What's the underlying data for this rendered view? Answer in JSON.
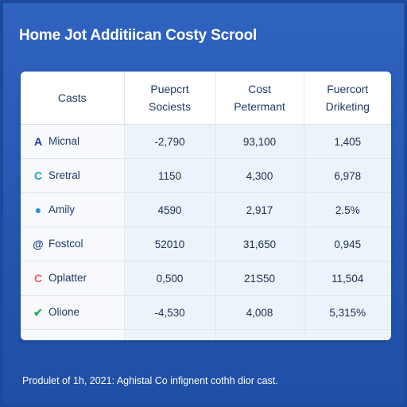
{
  "header": {
    "title": "Home Jot Additiican Costy Scrool"
  },
  "table": {
    "columns": [
      "Casts",
      "Puepcrt\nSociests",
      "Cost\nPetermant",
      "Fuercort\nDriketing"
    ],
    "rows": [
      {
        "icon": "letter-a-icon",
        "glyph": "A",
        "color": "#1d3f8f",
        "label": "Micnal",
        "values": [
          "-2,790",
          "93,100",
          "1,405"
        ]
      },
      {
        "icon": "letter-c-icon",
        "glyph": "C",
        "color": "#1aa3c2",
        "label": "Sretral",
        "values": [
          "1150",
          "4,300",
          "6,978"
        ]
      },
      {
        "icon": "drop-icon",
        "glyph": "●",
        "color": "#2b8fe0",
        "label": "Amily",
        "values": [
          "4590",
          "2,917",
          "2.5%"
        ]
      },
      {
        "icon": "at-icon",
        "glyph": "@",
        "color": "#1d3f8f",
        "label": "Fostcol",
        "values": [
          "52010",
          "31,650",
          "0,945"
        ]
      },
      {
        "icon": "ring-icon",
        "glyph": "C",
        "color": "#e06060",
        "label": "Oplatter",
        "values": [
          "0,500",
          "21S50",
          "11,504"
        ]
      },
      {
        "icon": "check-circle-icon",
        "glyph": "✔",
        "color": "#24a760",
        "label": "Olione",
        "values": [
          "-4,530",
          "4,008",
          "5,315%"
        ]
      }
    ]
  },
  "footer": {
    "text": "Produlet of 1h, 2021: Aghistal Co infignent cothh dior cast."
  }
}
